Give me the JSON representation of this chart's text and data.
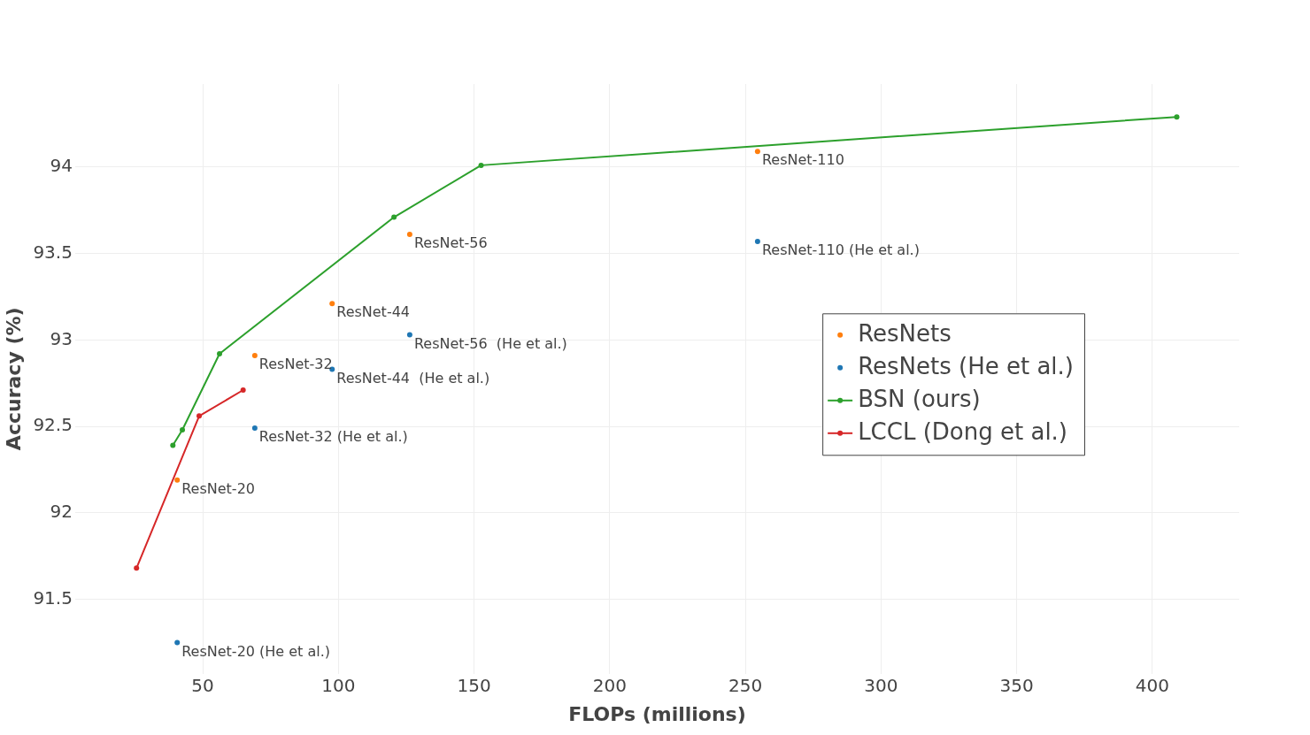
{
  "chart_data": {
    "type": "scatter",
    "xlabel": "FLOPs (millions)",
    "ylabel": "Accuracy (%)",
    "xlim": [
      3,
      432
    ],
    "xticks": [
      50,
      100,
      150,
      200,
      250,
      300,
      350,
      400
    ],
    "ylim": [
      91.07,
      94.48
    ],
    "yticks": [
      91.5,
      92,
      92.5,
      93,
      93.5,
      94
    ],
    "grid": true,
    "legend": "right",
    "marker": "circle",
    "series": [
      {
        "name": "ResNets",
        "type": "scatter",
        "color": "#ff7f0e",
        "x": [
          40.6,
          69.2,
          97.7,
          126.3,
          254.5
        ],
        "values": [
          92.19,
          92.91,
          93.21,
          93.61,
          94.09
        ]
      },
      {
        "name": "ResNets (He et al.)",
        "type": "scatter",
        "color": "#1f77b4",
        "x": [
          40.6,
          69.2,
          97.7,
          126.3,
          254.5
        ],
        "values": [
          91.25,
          92.49,
          92.83,
          93.03,
          93.57
        ]
      },
      {
        "name": "BSN (ours)",
        "type": "line",
        "color": "#2ca02c",
        "x": [
          39,
          42.5,
          56.2,
          120.5,
          152.6,
          409
        ],
        "values": [
          92.39,
          92.48,
          92.92,
          93.71,
          94.01,
          94.29
        ]
      },
      {
        "name": "LCCL (Dong et al.)",
        "type": "line",
        "color": "#d62728",
        "x": [
          25.6,
          48.7,
          64.9
        ],
        "values": [
          91.68,
          92.56,
          92.71
        ]
      }
    ],
    "annotations": [
      {
        "text": "ResNet-20",
        "x": 40.6,
        "y": 92.19
      },
      {
        "text": "ResNet-32",
        "x": 69.2,
        "y": 92.91
      },
      {
        "text": "ResNet-44",
        "x": 97.7,
        "y": 93.21
      },
      {
        "text": "ResNet-56",
        "x": 126.3,
        "y": 93.61
      },
      {
        "text": "ResNet-110",
        "x": 254.5,
        "y": 94.09
      },
      {
        "text": "ResNet-20 (He et al.)",
        "x": 40.6,
        "y": 91.25
      },
      {
        "text": "ResNet-32 (He et al.)",
        "x": 69.2,
        "y": 92.49
      },
      {
        "text": "ResNet-44  (He et al.)",
        "x": 97.7,
        "y": 92.83
      },
      {
        "text": "ResNet-56  (He et al.)",
        "x": 126.3,
        "y": 93.03
      },
      {
        "text": "ResNet-110 (He et al.)",
        "x": 254.5,
        "y": 93.57
      }
    ]
  }
}
